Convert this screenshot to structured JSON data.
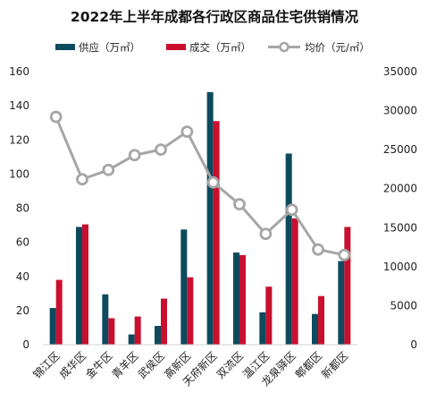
{
  "chart_data": {
    "type": "bar+line",
    "title": "2022年上半年成都各行政区商品住宅供销情况",
    "categories": [
      "锦江区",
      "成华区",
      "金牛区",
      "青羊区",
      "武侯区",
      "高新区",
      "天府新区",
      "双流区",
      "温江区",
      "龙泉驿区",
      "郫都区",
      "新都区"
    ],
    "series": [
      {
        "name": "供应（万㎡）",
        "type": "bar",
        "axis": "left",
        "color": "#0d4a5e",
        "values": [
          21.5,
          69,
          29.5,
          6,
          11,
          67.5,
          148,
          54,
          19,
          112,
          18,
          49
        ]
      },
      {
        "name": "成交（万㎡）",
        "type": "bar",
        "axis": "left",
        "color": "#c8102e",
        "values": [
          38,
          70.5,
          15.5,
          16.5,
          27,
          39.5,
          131,
          52.5,
          34,
          74,
          28.5,
          69
        ]
      },
      {
        "name": "均价（元/㎡）",
        "type": "line",
        "axis": "right",
        "color": "#a6a6a6",
        "values": [
          29200,
          21200,
          22400,
          24300,
          25000,
          27300,
          20800,
          18000,
          14200,
          17300,
          12200,
          11500
        ]
      }
    ],
    "y_left": {
      "min": 0,
      "max": 160,
      "ticks": [
        0,
        20,
        40,
        60,
        80,
        100,
        120,
        140,
        160
      ]
    },
    "y_right": {
      "min": 0,
      "max": 35000,
      "ticks": [
        0,
        5000,
        10000,
        15000,
        20000,
        25000,
        30000,
        35000
      ]
    },
    "legend_position": "top",
    "grid": false
  }
}
